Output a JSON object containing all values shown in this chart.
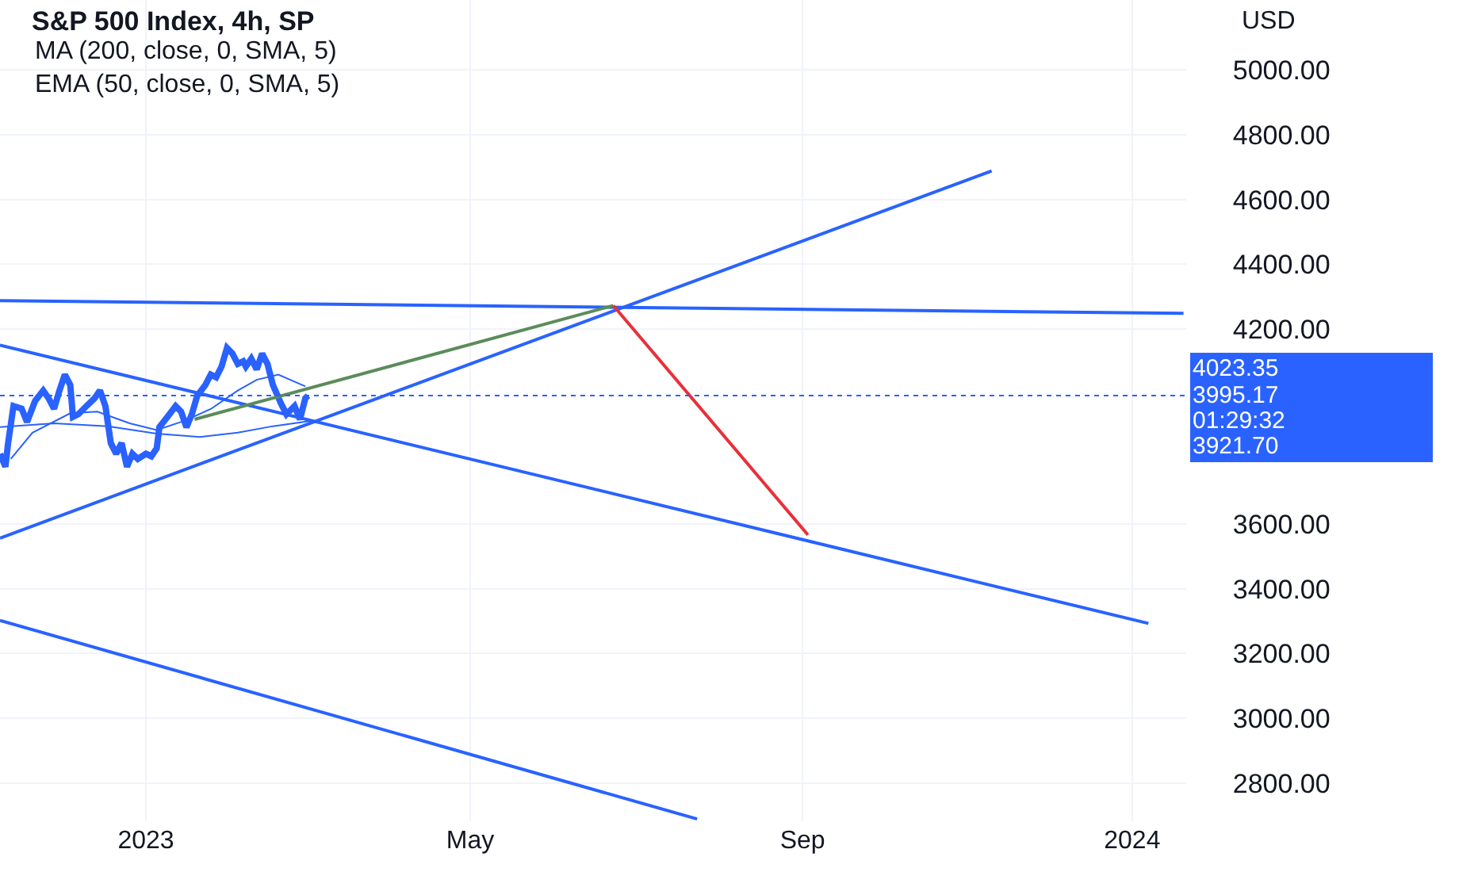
{
  "chart_data": {
    "type": "line",
    "title": "S&P 500 Index, 4h, SP",
    "subtitle": "MA (200, close, 0, SMA, 5)\nEMA (50, close, 0, SMA, 5)",
    "ylabel": "USD",
    "xlim": [
      "2022-11-08",
      "2024-01-21"
    ],
    "xticks": [
      {
        "value": "2023-01-01",
        "label": "2023"
      },
      {
        "value": "2023-05-01",
        "label": "May"
      },
      {
        "value": "2023-09-01",
        "label": "Sep"
      },
      {
        "value": "2024-01-01",
        "label": "2024"
      }
    ],
    "ylim": [
      2683,
      5215
    ],
    "yticks": [
      {
        "value": 2800,
        "label": "2800.00"
      },
      {
        "value": 3000,
        "label": "3000.00"
      },
      {
        "value": 3200,
        "label": "3200.00"
      },
      {
        "value": 3400,
        "label": "3400.00"
      },
      {
        "value": 3600,
        "label": "3600.00"
      },
      {
        "value": 4200,
        "label": "4200.00"
      },
      {
        "value": 4400,
        "label": "4400.00"
      },
      {
        "value": 4600,
        "label": "4600.00"
      },
      {
        "value": 4800,
        "label": "4800.00"
      },
      {
        "value": 5000,
        "label": "5000.00"
      }
    ],
    "grid": true,
    "series": [
      {
        "color": "#2962ff",
        "x": [
          "2022-11-08",
          "2022-11-10",
          "2022-11-11",
          "2022-11-13",
          "2022-11-16",
          "2022-11-18",
          "2022-11-21",
          "2022-11-24",
          "2022-11-26",
          "2022-11-28",
          "2022-11-30",
          "2022-12-02",
          "2022-12-04",
          "2022-12-05",
          "2022-12-07",
          "2022-12-10",
          "2022-12-13",
          "2022-12-15",
          "2022-12-17",
          "2022-12-19",
          "2022-12-21",
          "2022-12-23",
          "2022-12-25",
          "2022-12-27",
          "2022-12-29",
          "2023-01-01",
          "2023-01-03",
          "2023-01-05",
          "2023-01-06",
          "2023-01-09",
          "2023-01-12",
          "2023-01-14",
          "2023-01-16",
          "2023-01-18",
          "2023-01-20",
          "2023-01-23",
          "2023-01-25",
          "2023-01-27",
          "2023-01-29",
          "2023-01-31",
          "2023-02-02",
          "2023-02-04",
          "2023-02-06",
          "2023-02-07",
          "2023-02-09",
          "2023-02-11",
          "2023-02-13",
          "2023-02-15",
          "2023-02-17",
          "2023-02-20",
          "2023-02-22",
          "2023-02-25",
          "2023-02-27",
          "2023-03-01",
          "2023-03-02"
        ],
        "values": [
          3816,
          3776,
          3849,
          3963,
          3955,
          3914,
          3979,
          4011,
          3987,
          3955,
          4011,
          4060,
          4028,
          3930,
          3938,
          3963,
          3987,
          4011,
          3963,
          3849,
          3816,
          3849,
          3776,
          3816,
          3800,
          3816,
          3808,
          3833,
          3898,
          3930,
          3963,
          3946,
          3898,
          3938,
          3995,
          4028,
          4060,
          4052,
          4085,
          4142,
          4125,
          4093,
          4101,
          4085,
          4109,
          4076,
          4125,
          4093,
          4028,
          3971,
          3938,
          3963,
          3922,
          3987,
          3995
        ]
      },
      {
        "color": "#2962ff",
        "x": [
          "2022-11-08",
          "2022-11-28",
          "2022-12-18",
          "2023-01-05",
          "2023-01-21",
          "2023-02-04",
          "2023-02-17",
          "2023-03-03"
        ],
        "values": [
          3898,
          3910,
          3901,
          3878,
          3868,
          3881,
          3901,
          3917
        ]
      },
      {
        "color": "#2962ff",
        "x": [
          "2022-11-12",
          "2022-11-20",
          "2022-12-04",
          "2022-12-14",
          "2022-12-26",
          "2023-01-05",
          "2023-01-15",
          "2023-01-25",
          "2023-02-04",
          "2023-02-11",
          "2023-02-19",
          "2023-03-01"
        ],
        "values": [
          3800,
          3881,
          3941,
          3946,
          3910,
          3889,
          3917,
          3954,
          4011,
          4044,
          4060,
          4024
        ]
      },
      {
        "color": "#2962ff",
        "x": [
          "2022-11-08",
          "2024-01-20"
        ],
        "values": [
          4288,
          4249
        ]
      },
      {
        "color": "#2962ff",
        "x": [
          "2022-11-08",
          "2023-11-10"
        ],
        "values": [
          3556,
          4688
        ]
      },
      {
        "color": "#2962ff",
        "x": [
          "2022-11-08",
          "2024-01-07"
        ],
        "values": [
          4151,
          3293
        ]
      },
      {
        "color": "#2962ff",
        "x": [
          "2022-11-08",
          "2023-07-24"
        ],
        "values": [
          3302,
          2690
        ]
      },
      {
        "color": "#5b8c5a",
        "x": [
          "2023-01-19",
          "2023-06-23"
        ],
        "values": [
          3922,
          4273
        ]
      },
      {
        "color": "#e8303a",
        "x": [
          "2023-06-23",
          "2023-09-03"
        ],
        "values": [
          4273,
          3566
        ]
      }
    ],
    "ref_lines": [
      {
        "axis": "y",
        "value": 3995.17,
        "label": "3995.17",
        "color": "#2962ff",
        "line_style": "dotted"
      }
    ],
    "annotations": [
      "4023.35",
      "01:29:32",
      "3921.70"
    ]
  }
}
